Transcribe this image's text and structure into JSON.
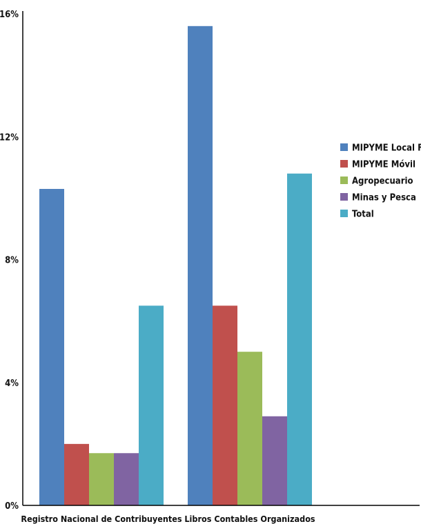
{
  "chart_data": {
    "type": "bar",
    "categories": [
      "Registro Nacional de Contribuyentes",
      "Libros Contables Organizados"
    ],
    "series": [
      {
        "name": "MIPYME Local Fijo",
        "color": "#4F81BD",
        "values": [
          10.3,
          15.6
        ]
      },
      {
        "name": "MIPYME Móvil",
        "color": "#C0504D",
        "values": [
          2.0,
          6.5
        ]
      },
      {
        "name": "Agropecuario",
        "color": "#9BBB59",
        "values": [
          1.7,
          5.0
        ]
      },
      {
        "name": "Minas y Pesca",
        "color": "#8064A2",
        "values": [
          1.7,
          2.9
        ]
      },
      {
        "name": "Total",
        "color": "#4BACC6",
        "values": [
          6.5,
          10.8
        ]
      }
    ],
    "ylim": [
      0,
      16
    ],
    "yticks": [
      0,
      4,
      8,
      12,
      16
    ],
    "ytick_labels": [
      "0%",
      "4%",
      "8%",
      "12%",
      "16%"
    ],
    "grid": false,
    "legend_position": "right"
  }
}
